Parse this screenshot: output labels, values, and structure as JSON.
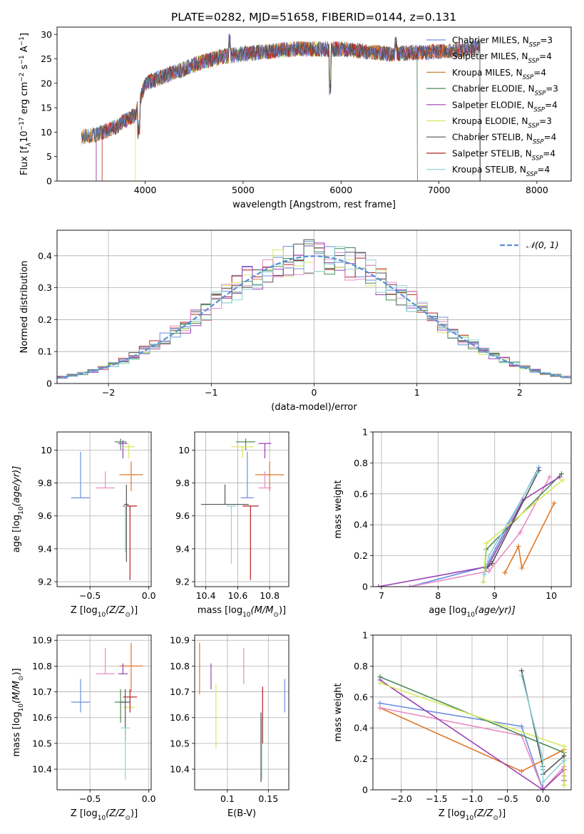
{
  "title": "PLATE=0282, MJD=51658, FIBERID=0144, z=0.131",
  "colors": {
    "Chabrier MILES": "#6a8fe0",
    "Salpeter MILES": "#e07828",
    "Kroupa MILES": "#c0882a",
    "Chabrier ELODIE": "#4c8c5a",
    "Salpeter ELODIE": "#9b3fb5",
    "Kroupa ELODIE": "#d8e860",
    "Chabrier STELIB": "#555555",
    "Salpeter STELIB": "#b22222",
    "Kroupa STELIB": "#8fd3d8",
    "pink": "#e88bc4",
    "normal": "#5a8fd6"
  },
  "chart_data": [
    {
      "id": "spectrum",
      "type": "line",
      "xlabel": "wavelength [Angstrom, rest frame]",
      "ylabel": "Flux [f",
      "ylabel_parts": [
        "Flux [f",
        "λ",
        "10",
        "−17",
        " erg cm",
        "−2",
        " s",
        "−1",
        " A",
        "−1",
        "]"
      ],
      "xlim": [
        3100,
        8350
      ],
      "ylim": [
        0,
        31.5
      ],
      "xticks": [
        4000,
        5000,
        6000,
        7000,
        8000
      ],
      "yticks": [
        0,
        5,
        10,
        15,
        20,
        25,
        30
      ],
      "legend_position": "right",
      "legend": [
        {
          "label": "Chabrier MILES, N",
          "sub": "SSP",
          "val": "=3"
        },
        {
          "label": "Salpeter MILES, N",
          "sub": "SSP",
          "val": "=4"
        },
        {
          "label": "Kroupa MILES, N",
          "sub": "SSP",
          "val": "=4"
        },
        {
          "label": "Chabrier ELODIE, N",
          "sub": "SSP",
          "val": "=3"
        },
        {
          "label": "Salpeter ELODIE, N",
          "sub": "SSP",
          "val": "=4"
        },
        {
          "label": "Kroupa ELODIE, N",
          "sub": "SSP",
          "val": "=3"
        },
        {
          "label": "Chabrier STELIB, N",
          "sub": "SSP",
          "val": "=4"
        },
        {
          "label": "Salpeter STELIB, N",
          "sub": "SSP",
          "val": "=4"
        },
        {
          "label": "Kroupa STELIB, N",
          "sub": "SSP",
          "val": "=4"
        }
      ],
      "continuum": {
        "x": [
          3350,
          3500,
          3700,
          3800,
          3900,
          4000,
          4200,
          4400,
          4600,
          4800,
          5000,
          5500,
          6000,
          6500,
          7000,
          7300,
          7440
        ],
        "y": [
          9,
          9.5,
          11,
          12.5,
          13.5,
          20,
          21.5,
          23,
          24.5,
          25.5,
          26,
          27,
          27,
          26,
          26.5,
          27,
          27.5
        ]
      },
      "range_starts": [
        3350,
        3350,
        3350,
        3500,
        3500,
        3900,
        3350,
        3560,
        3350
      ],
      "range_ends": [
        7420,
        7420,
        7420,
        6780,
        7420,
        6780,
        7420,
        7420,
        7420
      ]
    },
    {
      "id": "residuals",
      "type": "histogram",
      "xlabel": "(data-model)/error",
      "ylabel": "Normed distribution",
      "xlim": [
        -2.5,
        2.5
      ],
      "ylim": [
        0,
        0.48
      ],
      "xticks": [
        -2,
        -1,
        0,
        1,
        2
      ],
      "yticks": [
        0.0,
        0.1,
        0.2,
        0.3,
        0.4
      ],
      "legend_position": "top-right",
      "legend": "𝒩(0, 1)",
      "bin_width": 0.1,
      "x_start": -2.5
    },
    {
      "id": "age-vs-Z",
      "type": "errorbar",
      "xlabel": "Z [log",
      "xlabel_parts": [
        "Z [log",
        "10",
        "(Z/Z",
        "⊙",
        ")]"
      ],
      "ylabel": "age  [log",
      "ylabel_parts": [
        "age  [log",
        "10",
        "(age/yr)]"
      ],
      "xlim": [
        -0.78,
        0.02
      ],
      "ylim": [
        9.17,
        10.11
      ],
      "xticks": [
        -0.5,
        -0.0
      ],
      "xticklabels": [
        "−0.5",
        "0.0"
      ],
      "yticks": [
        9.2,
        9.4,
        9.6,
        9.8,
        10.0
      ],
      "points": [
        {
          "c": "Chabrier MILES",
          "x": -0.58,
          "y": 9.71,
          "xerr": 0.08,
          "yerr": [
            0,
            0.28
          ]
        },
        {
          "c": "Salpeter MILES",
          "x": -0.15,
          "y": 9.85,
          "xerr": 0.1,
          "yerr": [
            0.1,
            0.08
          ]
        },
        {
          "c": "pink",
          "x": -0.37,
          "y": 9.77,
          "xerr": 0.08,
          "yerr": [
            0.0,
            0.1
          ]
        },
        {
          "c": "Chabrier ELODIE",
          "x": -0.24,
          "y": 10.05,
          "xerr": 0.05,
          "yerr": [
            0.05,
            0.02
          ]
        },
        {
          "c": "Salpeter ELODIE",
          "x": -0.22,
          "y": 10.04,
          "xerr": 0.04,
          "yerr": [
            0.09,
            0.02
          ]
        },
        {
          "c": "Kroupa ELODIE",
          "x": -0.17,
          "y": 10.02,
          "xerr": 0.05,
          "yerr": [
            0.07,
            0.02
          ]
        },
        {
          "c": "Chabrier STELIB",
          "x": -0.19,
          "y": 9.67,
          "xerr": 0.02,
          "yerr": [
            0.35,
            0.12
          ]
        },
        {
          "c": "Salpeter STELIB",
          "x": -0.16,
          "y": 9.66,
          "xerr": 0.06,
          "yerr": [
            0.45,
            0.0
          ]
        },
        {
          "c": "Kroupa STELIB",
          "x": -0.2,
          "y": 9.66,
          "xerr": 0.01,
          "yerr": [
            0.28,
            0.0
          ]
        }
      ]
    },
    {
      "id": "age-vs-mass",
      "type": "errorbar",
      "xlabel": "mass [log",
      "xlabel_parts": [
        "mass [log",
        "10",
        "(M/M",
        "⊙",
        ")]"
      ],
      "ylabel": "",
      "xlim": [
        10.33,
        10.92
      ],
      "ylim": [
        9.17,
        10.11
      ],
      "xticks": [
        10.4,
        10.6,
        10.8
      ],
      "yticks": [
        9.2,
        9.4,
        9.6,
        9.8,
        10.0
      ],
      "points": [
        {
          "c": "Chabrier MILES",
          "x": 10.66,
          "y": 9.71,
          "xerr": 0.04,
          "yerr": [
            0,
            0.28
          ]
        },
        {
          "c": "Salpeter MILES",
          "x": 10.8,
          "y": 9.85,
          "xerr": 0.09,
          "yerr": [
            0.1,
            0.08
          ]
        },
        {
          "c": "pink",
          "x": 10.77,
          "y": 9.77,
          "xerr": 0.04,
          "yerr": [
            0.0,
            0.1
          ]
        },
        {
          "c": "Chabrier ELODIE",
          "x": 10.65,
          "y": 10.05,
          "xerr": 0.06,
          "yerr": [
            0.05,
            0.02
          ]
        },
        {
          "c": "Salpeter ELODIE",
          "x": 10.77,
          "y": 10.04,
          "xerr": 0.04,
          "yerr": [
            0.09,
            0.0
          ]
        },
        {
          "c": "Kroupa ELODIE",
          "x": 10.63,
          "y": 10.02,
          "xerr": 0.07,
          "yerr": [
            0.07,
            0.0
          ]
        },
        {
          "c": "Chabrier STELIB",
          "x": 10.52,
          "y": 9.67,
          "xerr": 0.15,
          "yerr": [
            0.0,
            0.12
          ]
        },
        {
          "c": "Salpeter STELIB",
          "x": 10.68,
          "y": 9.66,
          "xerr": 0.05,
          "yerr": [
            0.45,
            0.0
          ]
        },
        {
          "c": "Kroupa STELIB",
          "x": 10.56,
          "y": 9.66,
          "xerr": 0.03,
          "yerr": [
            0.35,
            0.0
          ]
        }
      ]
    },
    {
      "id": "mass-weight-vs-age",
      "type": "line",
      "xlabel": "age  [log",
      "xlabel_parts": [
        "age  [log",
        "10",
        "(age/yr)]"
      ],
      "ylabel": "mass weight",
      "xlim": [
        6.85,
        10.35
      ],
      "ylim": [
        0,
        1
      ],
      "xticks": [
        7,
        8,
        9,
        10
      ],
      "yticks": [
        0.0,
        0.2,
        0.4,
        0.6,
        0.8,
        1.0
      ],
      "series": [
        {
          "c": "Chabrier MILES",
          "x": [
            7.5,
            8.85,
            9.25,
            9.78
          ],
          "y": [
            0.0,
            0.13,
            0.41,
            0.77
          ]
        },
        {
          "c": "Salpeter MILES",
          "x": [
            9.18,
            9.42,
            9.48,
            10.05
          ],
          "y": [
            0.09,
            0.26,
            0.12,
            0.54
          ]
        },
        {
          "c": "pink",
          "x": [
            7.5,
            8.9,
            9.45,
            9.97
          ],
          "y": [
            0.0,
            0.1,
            0.35,
            0.71
          ]
        },
        {
          "c": "Chabrier ELODIE",
          "x": [
            8.8,
            8.85,
            10.18
          ],
          "y": [
            0.03,
            0.24,
            0.73
          ]
        },
        {
          "c": "Salpeter ELODIE",
          "x": [
            6.95,
            8.88,
            9.5,
            10.15
          ],
          "y": [
            0.0,
            0.13,
            0.56,
            0.71
          ]
        },
        {
          "c": "Kroupa ELODIE",
          "x": [
            8.8,
            8.85,
            10.2
          ],
          "y": [
            0.03,
            0.28,
            0.69
          ]
        },
        {
          "c": "Chabrier STELIB",
          "x": [
            8.85,
            8.95,
            9.78
          ],
          "y": [
            0.12,
            0.15,
            0.75
          ]
        },
        {
          "c": "Kroupa STELIB",
          "x": [
            8.82,
            8.9,
            9.75
          ],
          "y": [
            0.08,
            0.2,
            0.74
          ]
        }
      ]
    },
    {
      "id": "mass-vs-Z",
      "type": "errorbar",
      "xlabel": "Z [log",
      "xlabel_parts": [
        "Z [log",
        "10",
        "(Z/Z",
        "⊙",
        ")]"
      ],
      "ylabel": "mass [log",
      "ylabel_parts": [
        "mass [log",
        "10",
        "(M/M",
        "⊙",
        ")]"
      ],
      "xlim": [
        -0.78,
        0.02
      ],
      "ylim": [
        10.32,
        10.92
      ],
      "xticks": [
        -0.5,
        -0.0
      ],
      "xticklabels": [
        "−0.5",
        "0.0"
      ],
      "yticks": [
        10.4,
        10.5,
        10.6,
        10.7,
        10.8,
        10.9
      ],
      "points": [
        {
          "c": "Chabrier MILES",
          "x": -0.58,
          "y": 10.66,
          "xerr": 0.08,
          "yerr": [
            0.04,
            0.09
          ]
        },
        {
          "c": "Salpeter MILES",
          "x": -0.15,
          "y": 10.8,
          "xerr": 0.1,
          "yerr": [
            0.1,
            0.09
          ]
        },
        {
          "c": "pink",
          "x": -0.37,
          "y": 10.77,
          "xerr": 0.08,
          "yerr": [
            0.0,
            0.1
          ]
        },
        {
          "c": "Chabrier ELODIE",
          "x": -0.24,
          "y": 10.66,
          "xerr": 0.05,
          "yerr": [
            0.08,
            0.05
          ]
        },
        {
          "c": "Salpeter ELODIE",
          "x": -0.22,
          "y": 10.77,
          "xerr": 0.04,
          "yerr": [
            0.0,
            0.04
          ]
        },
        {
          "c": "Kroupa ELODIE",
          "x": -0.17,
          "y": 10.64,
          "xerr": 0.05,
          "yerr": [
            0.0,
            0.0
          ]
        },
        {
          "c": "Chabrier STELIB",
          "x": -0.2,
          "y": 10.66,
          "xerr": 0.04,
          "yerr": [
            0.15,
            0.05
          ]
        },
        {
          "c": "Salpeter STELIB",
          "x": -0.16,
          "y": 10.68,
          "xerr": 0.06,
          "yerr": [
            0.06,
            0.03
          ]
        },
        {
          "c": "Kroupa STELIB",
          "x": -0.2,
          "y": 10.56,
          "xerr": 0.04,
          "yerr": [
            0.2,
            0.0
          ]
        }
      ]
    },
    {
      "id": "mass-vs-ebv",
      "type": "errorbar",
      "xlabel": "E(B-V)",
      "ylabel": "",
      "xlim": [
        0.06,
        0.175
      ],
      "ylim": [
        10.32,
        10.92
      ],
      "xticks": [
        0.1,
        0.15
      ],
      "yticks": [
        10.4,
        10.5,
        10.6,
        10.7,
        10.8,
        10.9
      ],
      "points": [
        {
          "c": "Chabrier MILES",
          "x": 0.17,
          "y": 10.68,
          "xerr": 0,
          "yerr": [
            0.06,
            0.07
          ]
        },
        {
          "c": "Salpeter MILES",
          "x": 0.066,
          "y": 10.79,
          "xerr": 0,
          "yerr": [
            0.1,
            0.1
          ]
        },
        {
          "c": "pink",
          "x": 0.12,
          "y": 10.8,
          "xerr": 0,
          "yerr": [
            0.07,
            0.07
          ]
        },
        {
          "c": "Salpeter ELODIE",
          "x": 0.08,
          "y": 10.76,
          "xerr": 0,
          "yerr": [
            0.05,
            0.05
          ]
        },
        {
          "c": "Kroupa ELODIE",
          "x": 0.086,
          "y": 10.59,
          "xerr": 0,
          "yerr": [
            0.11,
            0.14
          ]
        },
        {
          "c": "Salpeter STELIB",
          "x": 0.143,
          "y": 10.6,
          "xerr": 0,
          "yerr": [
            0.1,
            0.12
          ]
        },
        {
          "c": "Chabrier STELIB",
          "x": 0.141,
          "y": 10.49,
          "xerr": 0,
          "yerr": [
            0.14,
            0.13
          ]
        },
        {
          "c": "Kroupa STELIB",
          "x": 0.142,
          "y": 10.48,
          "xerr": 0,
          "yerr": [
            0.12,
            0.12
          ]
        }
      ]
    },
    {
      "id": "mass-weight-vs-Z",
      "type": "line",
      "xlabel": "Z [log",
      "xlabel_parts": [
        "Z [log",
        "10",
        "(Z/Z",
        "⊙",
        ")]"
      ],
      "ylabel": "mass weight",
      "xlim": [
        -2.4,
        0.4
      ],
      "ylim": [
        0,
        1
      ],
      "xticks": [
        -2.0,
        -1.5,
        -1.0,
        -0.5,
        0.0
      ],
      "xticklabels": [
        "−2.0",
        "−1.5",
        "−1.0",
        "−0.5",
        "0.0"
      ],
      "yticks": [
        0.0,
        0.2,
        0.4,
        0.6,
        0.8,
        1.0
      ],
      "series": [
        {
          "c": "Chabrier MILES",
          "x": [
            -2.3,
            -0.3,
            0.0,
            0.0
          ],
          "y": [
            0.56,
            0.41,
            0.0,
            0.13
          ]
        },
        {
          "c": "Salpeter MILES",
          "x": [
            -2.3,
            -0.3,
            0.3,
            0.3
          ],
          "y": [
            0.53,
            0.12,
            0.26,
            0.09
          ]
        },
        {
          "c": "pink",
          "x": [
            -2.3,
            -0.3,
            0.0,
            0.3,
            0.3
          ],
          "y": [
            0.53,
            0.35,
            0.0,
            0.15,
            0.09
          ]
        },
        {
          "c": "Chabrier ELODIE",
          "x": [
            -2.3,
            0.3,
            0.3
          ],
          "y": [
            0.73,
            0.24,
            0.03
          ]
        },
        {
          "c": "Salpeter ELODIE",
          "x": [
            -2.3,
            0.0,
            0.3,
            0.3
          ],
          "y": [
            0.71,
            0.0,
            0.13,
            0.06
          ]
        },
        {
          "c": "Kroupa ELODIE",
          "x": [
            -2.3,
            0.3,
            0.3
          ],
          "y": [
            0.69,
            0.28,
            0.03
          ]
        },
        {
          "c": "Chabrier STELIB",
          "x": [
            -0.3,
            0.0,
            0.0,
            0.3
          ],
          "y": [
            0.77,
            0.15,
            0.1,
            0.22
          ]
        },
        {
          "c": "Kroupa STELIB",
          "x": [
            -0.3,
            0.0,
            0.0,
            0.3
          ],
          "y": [
            0.74,
            0.2,
            0.05,
            0.19
          ]
        }
      ]
    }
  ]
}
